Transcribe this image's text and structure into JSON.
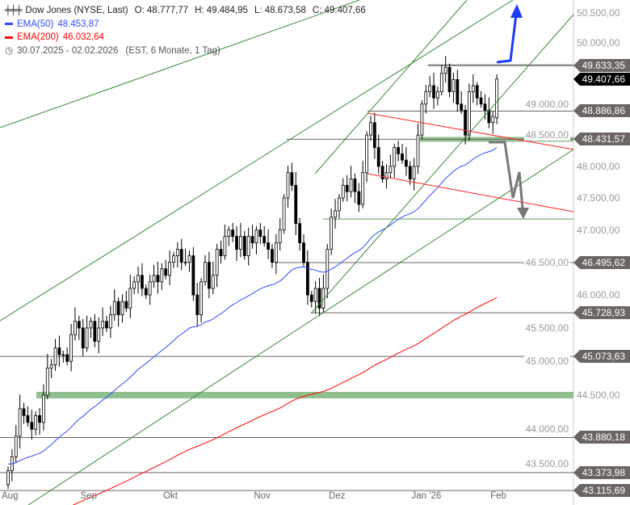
{
  "legend": {
    "instrument": "Dow Jones (NYSE, Last)",
    "open": "O: 48.777,77",
    "high": "H: 49.484,95",
    "low": "L: 48.673,58",
    "close": "C: 49.407,66",
    "ema50_label": "EMA(50)",
    "ema50_value": "48.453,87",
    "ema200_label": "EMA(200)",
    "ema200_value": "46.032,64",
    "range": "30.07.2025 - 02.02.2026",
    "settings": "(EST, 6 Monate, 1 Tag)"
  },
  "colors": {
    "ema50": "#2e4cff",
    "ema200": "#ff0000",
    "trend": "#3a8a3a",
    "support": "#8fbf8f",
    "level": "#6b6663"
  },
  "chart_data": {
    "type": "candlestick",
    "title": "Dow Jones (NYSE, Last)",
    "y_scale": "log",
    "ylim": [
      42910,
      51000
    ],
    "y_ticks": [
      43500,
      44000,
      44500,
      45000,
      45500,
      46000,
      46500,
      47000,
      47500,
      48000,
      48500,
      49000,
      50000,
      50500
    ],
    "y_tick_labels": [
      "43.500,00",
      "44.000,00",
      "44.500,00",
      "45.000,00",
      "45.500,00",
      "46.000,00",
      "46.500,00",
      "47.000,00",
      "47.500,00",
      "48.000,00",
      "48.500,00",
      "49.000,00",
      "50.000,00",
      "50.500,00"
    ],
    "x_labels": [
      {
        "label": "Aug",
        "index": 0
      },
      {
        "label": "Sep",
        "index": 20
      },
      {
        "label": "Okt",
        "index": 41
      },
      {
        "label": "Nov",
        "index": 64
      },
      {
        "label": "Dez",
        "index": 83
      },
      {
        "label": "Jan '26",
        "index": 104
      },
      {
        "label": "Feb",
        "index": 124
      }
    ],
    "closes": [
      43.4,
      43.6,
      43.9,
      44.3,
      44.2,
      44.1,
      44.0,
      44.2,
      44.1,
      44.5,
      44.9,
      44.95,
      45.2,
      45.1,
      45.1,
      45.0,
      45.4,
      45.6,
      45.5,
      45.2,
      45.5,
      45.6,
      45.3,
      45.5,
      45.6,
      45.5,
      45.7,
      45.9,
      45.7,
      45.9,
      45.8,
      46.1,
      46.2,
      46.3,
      46.1,
      46.0,
      46.2,
      46.3,
      46.2,
      46.4,
      46.3,
      46.5,
      46.6,
      46.7,
      46.5,
      46.5,
      46.6,
      46.0,
      45.7,
      46.2,
      46.5,
      46.1,
      46.3,
      46.7,
      46.6,
      46.9,
      47.0,
      46.9,
      46.7,
      46.9,
      46.6,
      46.9,
      46.8,
      47.0,
      46.9,
      46.8,
      46.7,
      46.5,
      46.8,
      47.0,
      47.5,
      47.9,
      47.7,
      47.1,
      46.8,
      46.5,
      46.0,
      45.9,
      46.1,
      45.8,
      46.1,
      46.7,
      47.2,
      47.3,
      47.5,
      47.7,
      47.6,
      47.8,
      47.6,
      47.4,
      47.9,
      48.5,
      48.7,
      48.3,
      48.0,
      47.8,
      47.9,
      48.0,
      48.3,
      48.2,
      48.1,
      48.0,
      47.8,
      48.0,
      48.5,
      49.0,
      49.2,
      49.3,
      49.1,
      49.2,
      49.5,
      49.6,
      49.2,
      49.4,
      49.0,
      48.9,
      48.5,
      49.2,
      49.3,
      49.1,
      49.0,
      48.9,
      48.7,
      48.8
    ],
    "last_candle": {
      "open": 48777.77,
      "high": 49484.95,
      "low": 48673.58,
      "close": 49407.66
    },
    "series": [
      {
        "name": "EMA(50)",
        "value": 48453.87,
        "seed": 43500
      },
      {
        "name": "EMA(200)",
        "value": 46032.64,
        "seed": 42600
      }
    ],
    "levels": [
      {
        "value": 49633.35,
        "label": "49.633,35"
      },
      {
        "value": 49407.66,
        "label": "49.407,66",
        "current": true
      },
      {
        "value": 48886.86,
        "label": "48.886,86"
      },
      {
        "value": 48431.57,
        "label": "48.431,57"
      },
      {
        "value": 46495.62,
        "label": "46.495,62"
      },
      {
        "value": 45728.93,
        "label": "45.728,93"
      },
      {
        "value": 45073.63,
        "label": "45.073,63"
      },
      {
        "value": 43880.18,
        "label": "43.880,18"
      },
      {
        "value": 43373.98,
        "label": "43.373,98"
      },
      {
        "value": 43115.69,
        "label": "43.115,69"
      }
    ],
    "support_zones": [
      44500,
      48431.57,
      47170
    ]
  }
}
